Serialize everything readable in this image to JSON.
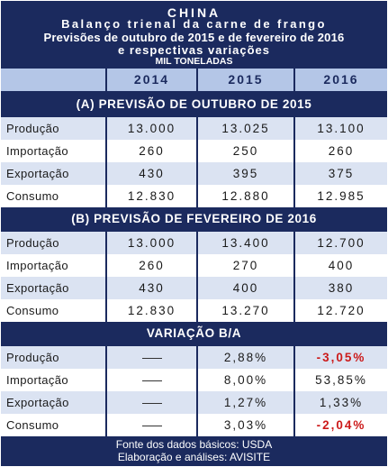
{
  "header": {
    "title": "CHINA",
    "subtitle": "Balanço trienal da carne de frango",
    "line3": "Previsões de outubro de 2015 e de fevereiro de 2016",
    "line4": "e respectivas variações",
    "unit": "MIL TONELADAS"
  },
  "years": [
    "2014",
    "2015",
    "2016"
  ],
  "sections": {
    "a": {
      "title": "(A) PREVISÃO DE OUTUBRO DE 2015",
      "rows": [
        {
          "label": "Produção",
          "v": [
            "13.000",
            "13.025",
            "13.100"
          ]
        },
        {
          "label": "Importação",
          "v": [
            "260",
            "250",
            "260"
          ]
        },
        {
          "label": "Exportação",
          "v": [
            "430",
            "395",
            "375"
          ]
        },
        {
          "label": "Consumo",
          "v": [
            "12.830",
            "12.880",
            "12.985"
          ]
        }
      ]
    },
    "b": {
      "title": "(B) PREVISÃO DE FEVEREIRO DE 2016",
      "rows": [
        {
          "label": "Produção",
          "v": [
            "13.000",
            "13.400",
            "12.700"
          ]
        },
        {
          "label": "Importação",
          "v": [
            "260",
            "270",
            "400"
          ]
        },
        {
          "label": "Exportação",
          "v": [
            "430",
            "400",
            "380"
          ]
        },
        {
          "label": "Consumo",
          "v": [
            "12.830",
            "13.270",
            "12.720"
          ]
        }
      ]
    },
    "c": {
      "title": "VARIAÇÃO B/A",
      "rows": [
        {
          "label": "Produção",
          "v": [
            "",
            "2,88%",
            "-3,05%"
          ]
        },
        {
          "label": "Importação",
          "v": [
            "",
            "8,00%",
            "53,85%"
          ]
        },
        {
          "label": "Exportação",
          "v": [
            "",
            "1,27%",
            "1,33%"
          ]
        },
        {
          "label": "Consumo",
          "v": [
            "",
            "3,03%",
            "-2,04%"
          ]
        }
      ]
    }
  },
  "colors": {
    "navy": "#1b2a5e",
    "light_blue": "#b4c6e7",
    "row_blue": "#dbe3f2",
    "negative_red": "#cc1a1a"
  },
  "footer": {
    "source": "Fonte dos dados básicos: USDA",
    "credit": "Elaboração e análises: AVISITE"
  }
}
